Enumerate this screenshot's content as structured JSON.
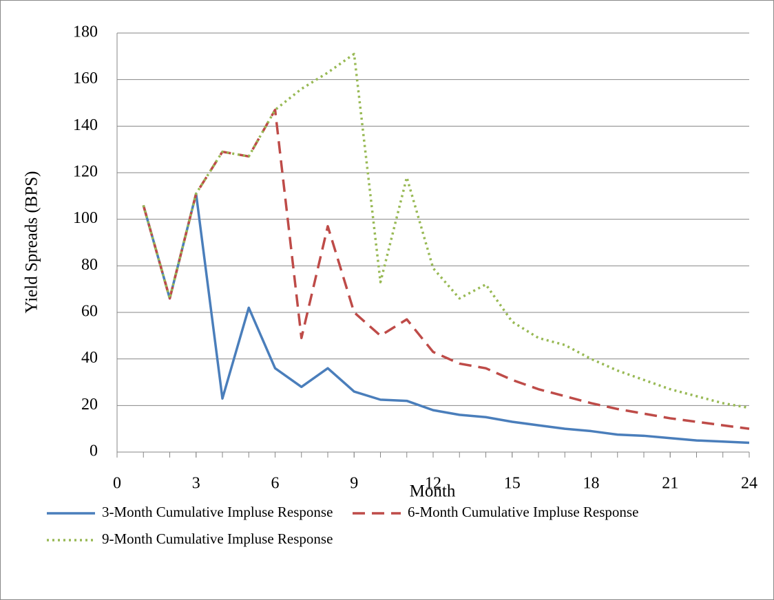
{
  "chart_data": {
    "type": "line",
    "x_label": "Month",
    "y_label": "Yield Spreads (BPS)",
    "x": [
      1,
      2,
      3,
      4,
      5,
      6,
      7,
      8,
      9,
      10,
      11,
      12,
      13,
      14,
      15,
      16,
      17,
      18,
      19,
      20,
      21,
      22,
      23,
      24
    ],
    "xlim": [
      0,
      24
    ],
    "xticks": [
      0,
      3,
      6,
      9,
      12,
      15,
      18,
      21,
      24
    ],
    "ylim": [
      0,
      180
    ],
    "yticks": [
      0,
      20,
      40,
      60,
      80,
      100,
      120,
      140,
      160,
      180
    ],
    "grid": true,
    "legend": "bottom",
    "series": [
      {
        "name": "3-Month Cumulative Impluse Response",
        "color": "#4a7ebb",
        "dash": "solid",
        "values": [
          106,
          66,
          111,
          23,
          62,
          36,
          28,
          36,
          26,
          22.5,
          22,
          18,
          16,
          15,
          13,
          11.5,
          10,
          9,
          7.5,
          7,
          6,
          5,
          4.5,
          4
        ]
      },
      {
        "name": "6-Month Cumulative Impluse Response",
        "color": "#be4b48",
        "dash": "dashed",
        "values": [
          106,
          66,
          111,
          129,
          127,
          147,
          49,
          97,
          60,
          50,
          57,
          43,
          38,
          36,
          31,
          27,
          24,
          21,
          18.5,
          16.5,
          14.5,
          13,
          11.5,
          10
        ]
      },
      {
        "name": "9-Month Cumulative Impluse Response",
        "color": "#98b954",
        "dash": "dotted",
        "values": [
          106,
          66,
          111,
          129,
          127,
          147,
          156,
          163,
          171,
          73,
          118,
          79,
          66,
          72,
          56,
          49,
          46,
          40,
          35,
          31,
          27,
          24,
          21,
          19
        ]
      }
    ]
  }
}
